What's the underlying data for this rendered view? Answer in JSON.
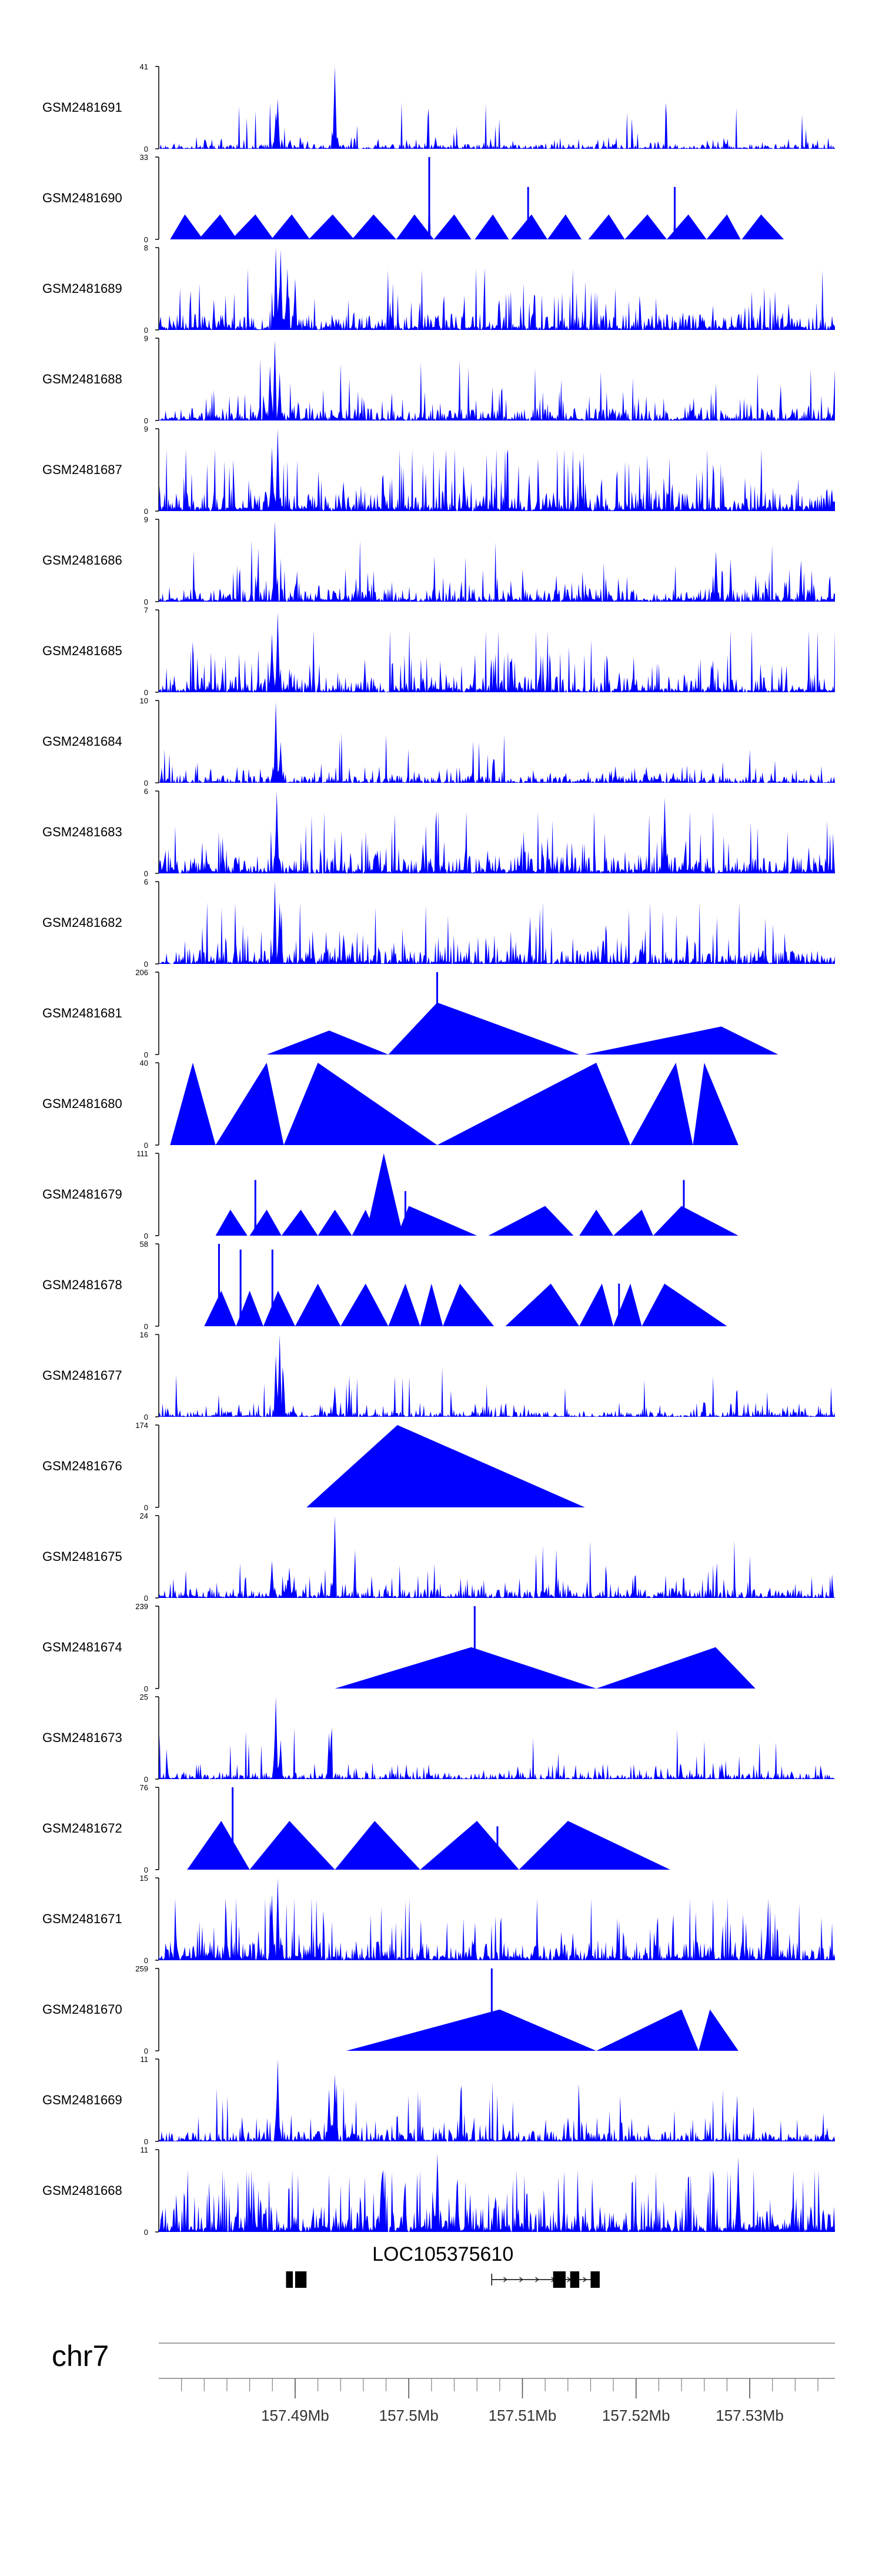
{
  "colors": {
    "track_fill": "#0000ff",
    "axis": "#000000",
    "ideogram_line": "#808080",
    "gene": "#000000"
  },
  "chart_data": {
    "type": "area",
    "title": "",
    "chromosome": "chr7",
    "xlim": [
      157.478,
      157.5375
    ],
    "x_ticks": [
      157.49,
      157.5,
      157.51,
      157.52,
      157.53
    ],
    "x_tick_labels": [
      "157.49Mb",
      "157.5Mb",
      "157.51Mb",
      "157.52Mb",
      "157.53Mb"
    ],
    "gene": {
      "name": "LOC105375610",
      "exons_upstream": [
        [
          157.4892,
          157.4898
        ],
        [
          157.49,
          157.491
        ]
      ],
      "intron_downstream": [
        157.5073,
        157.5168
      ],
      "exons_downstream": [
        [
          157.5127,
          157.5138
        ],
        [
          157.5142,
          157.515
        ],
        [
          157.516,
          157.5168
        ]
      ]
    },
    "series": [
      {
        "name": "GSM2481691",
        "ymax": 41,
        "tick_top": "41",
        "tick_bottom": "0",
        "style": "noise",
        "base": 2.5,
        "spikes": [
          [
            157.4885,
            25
          ],
          [
            157.4883,
            18
          ],
          [
            157.4935,
            41
          ]
        ],
        "seed": 11
      },
      {
        "name": "GSM2481690",
        "ymax": 33,
        "tick_top": "33",
        "tick_bottom": "0",
        "style": "triangles",
        "tri": [
          [
            157.479,
            157.4803,
            157.4819,
            10
          ],
          [
            157.4815,
            157.4834,
            157.4849,
            10
          ],
          [
            157.4844,
            157.4865,
            157.4881,
            10
          ],
          [
            157.4879,
            157.4897,
            157.4913,
            10
          ],
          [
            157.4912,
            157.4933,
            157.4952,
            10
          ],
          [
            157.495,
            157.4969,
            157.4989,
            10
          ],
          [
            157.4989,
            157.5005,
            157.5022,
            10
          ],
          [
            157.5022,
            157.504,
            157.5055,
            10
          ],
          [
            157.5058,
            157.5074,
            157.5088,
            10
          ],
          [
            157.509,
            157.5108,
            157.5122,
            10
          ],
          [
            157.5122,
            157.5138,
            157.5152,
            10
          ],
          [
            157.5158,
            157.5176,
            157.519,
            10
          ],
          [
            157.519,
            157.521,
            157.5227,
            10
          ],
          [
            157.5227,
            157.5246,
            157.5262,
            10
          ],
          [
            157.5262,
            157.528,
            157.5292,
            10
          ],
          [
            157.5293,
            157.531,
            157.533,
            10
          ]
        ],
        "spikes": [
          [
            157.5018,
            33
          ],
          [
            157.5105,
            21
          ],
          [
            157.5234,
            21
          ]
        ]
      },
      {
        "name": "GSM2481689",
        "ymax": 8,
        "tick_top": "8",
        "tick_bottom": "0",
        "style": "noise",
        "base": 1.6,
        "spikes": [
          [
            157.4883,
            8
          ],
          [
            157.4887,
            7.8
          ],
          [
            157.4893,
            6
          ],
          [
            157.49,
            5
          ]
        ],
        "seed": 23
      },
      {
        "name": "GSM2481688",
        "ymax": 9,
        "tick_top": "9",
        "tick_bottom": "0",
        "style": "noise",
        "base": 1.4,
        "spikes": [
          [
            157.4882,
            8.8
          ],
          [
            157.4878,
            6
          ],
          [
            157.4886,
            5
          ],
          [
            157.5375,
            5.5
          ]
        ],
        "seed": 37
      },
      {
        "name": "GSM2481687",
        "ymax": 9,
        "tick_top": "9",
        "tick_bottom": "0",
        "style": "noise",
        "base": 2.2,
        "spikes": [
          [
            157.4885,
            9
          ],
          [
            157.488,
            7
          ]
        ],
        "seed": 41
      },
      {
        "name": "GSM2481686",
        "ymax": 9,
        "tick_top": "9",
        "tick_bottom": "0",
        "style": "noise",
        "base": 1.5,
        "spikes": [
          [
            157.4882,
            8.8
          ],
          [
            157.527,
            5.5
          ]
        ],
        "seed": 53
      },
      {
        "name": "GSM2481685",
        "ymax": 7,
        "tick_top": "7",
        "tick_bottom": "0",
        "style": "noise",
        "base": 1.4,
        "spikes": [
          [
            157.4885,
            6.8
          ],
          [
            157.488,
            5
          ]
        ],
        "seed": 67
      },
      {
        "name": "GSM2481684",
        "ymax": 10,
        "tick_top": "10",
        "tick_bottom": "0",
        "style": "noise",
        "base": 0.9,
        "spikes": [
          [
            157.4883,
            9.8
          ],
          [
            157.4887,
            5
          ]
        ],
        "seed": 71
      },
      {
        "name": "GSM2481683",
        "ymax": 6,
        "tick_top": "6",
        "tick_bottom": "0",
        "style": "noise",
        "base": 1.3,
        "spikes": [
          [
            157.4884,
            6
          ],
          [
            157.5225,
            5.5
          ]
        ],
        "seed": 83
      },
      {
        "name": "GSM2481682",
        "ymax": 6,
        "tick_top": "6",
        "tick_bottom": "0",
        "style": "noise",
        "base": 1.0,
        "spikes": [
          [
            157.4882,
            6
          ],
          [
            157.4886,
            4.5
          ]
        ],
        "seed": 97
      },
      {
        "name": "GSM2481681",
        "ymax": 206,
        "tick_top": "206",
        "tick_bottom": "0",
        "style": "triangles",
        "tri": [
          [
            157.4875,
            157.493,
            157.4982,
            60
          ],
          [
            157.4982,
            157.5025,
            157.515,
            130
          ],
          [
            157.5155,
            157.5275,
            157.5325,
            70
          ]
        ],
        "spikes": [
          [
            157.5025,
            206
          ]
        ]
      },
      {
        "name": "GSM2481680",
        "ymax": 40,
        "tick_top": "40",
        "tick_bottom": "0",
        "style": "triangles",
        "tri": [
          [
            157.479,
            157.481,
            157.483,
            40
          ],
          [
            157.483,
            157.4875,
            157.489,
            40
          ],
          [
            157.489,
            157.492,
            157.5025,
            40
          ],
          [
            157.5025,
            157.5165,
            157.5195,
            40
          ],
          [
            157.5195,
            157.5235,
            157.525,
            40
          ],
          [
            157.525,
            157.526,
            157.529,
            40
          ]
        ]
      },
      {
        "name": "GSM2481679",
        "ymax": 111,
        "tick_top": "111",
        "tick_bottom": "0",
        "style": "triangles",
        "tri": [
          [
            157.483,
            157.4843,
            157.4858,
            35
          ],
          [
            157.486,
            157.4875,
            157.4888,
            35
          ],
          [
            157.4888,
            157.4905,
            157.492,
            35
          ],
          [
            157.492,
            157.4935,
            157.495,
            35
          ],
          [
            157.495,
            157.4962,
            157.4972,
            35
          ],
          [
            157.4962,
            157.4978,
            157.4995,
            111
          ],
          [
            157.499,
            157.5,
            157.506,
            40
          ],
          [
            157.507,
            157.512,
            157.5145,
            40
          ],
          [
            157.515,
            157.5165,
            157.518,
            35
          ],
          [
            157.518,
            157.5205,
            157.5215,
            35
          ],
          [
            157.5215,
            157.524,
            157.529,
            40
          ]
        ],
        "spikes": [
          [
            157.4865,
            75
          ],
          [
            157.4997,
            60
          ],
          [
            157.5242,
            75
          ]
        ]
      },
      {
        "name": "GSM2481678",
        "ymax": 58,
        "tick_top": "58",
        "tick_bottom": "0",
        "style": "triangles",
        "tri": [
          [
            157.482,
            157.4835,
            157.4848,
            25
          ],
          [
            157.4848,
            157.486,
            157.4872,
            25
          ],
          [
            157.4872,
            157.4885,
            157.49,
            25
          ],
          [
            157.49,
            157.492,
            157.494,
            30
          ],
          [
            157.494,
            157.4962,
            157.4982,
            30
          ],
          [
            157.4982,
            157.4997,
            157.501,
            30
          ],
          [
            157.501,
            157.502,
            157.503,
            30
          ],
          [
            157.503,
            157.5045,
            157.5075,
            30
          ],
          [
            157.5085,
            157.5125,
            157.515,
            30
          ],
          [
            157.515,
            157.517,
            157.518,
            30
          ],
          [
            157.518,
            157.5195,
            157.5205,
            30
          ],
          [
            157.5205,
            157.5225,
            157.528,
            30
          ]
        ],
        "spikes": [
          [
            157.4833,
            58
          ],
          [
            157.4852,
            54
          ],
          [
            157.488,
            54
          ],
          [
            157.5185,
            30
          ]
        ]
      },
      {
        "name": "GSM2481677",
        "ymax": 16,
        "tick_top": "16",
        "tick_bottom": "0",
        "style": "noise",
        "base": 1.2,
        "spikes": [
          [
            157.4886,
            16
          ],
          [
            157.4883,
            12
          ],
          [
            157.4935,
            6
          ],
          [
            157.489,
            8
          ]
        ],
        "seed": 109
      },
      {
        "name": "GSM2481676",
        "ymax": 174,
        "tick_top": "174",
        "tick_bottom": "0",
        "style": "triangles",
        "tri": [
          [
            157.491,
            157.499,
            157.5155,
            174
          ]
        ]
      },
      {
        "name": "GSM2481675",
        "ymax": 24,
        "tick_top": "24",
        "tick_bottom": "0",
        "style": "noise",
        "base": 2.8,
        "spikes": [
          [
            157.4935,
            24
          ],
          [
            157.488,
            11
          ],
          [
            157.4895,
            9
          ]
        ],
        "seed": 127
      },
      {
        "name": "GSM2481674",
        "ymax": 239,
        "tick_top": "239",
        "tick_bottom": "0",
        "style": "triangles",
        "tri": [
          [
            157.4935,
            157.5055,
            157.5165,
            120
          ],
          [
            157.5165,
            157.527,
            157.5305,
            120
          ]
        ],
        "spikes": [
          [
            157.5058,
            239
          ]
        ]
      },
      {
        "name": "GSM2481673",
        "ymax": 25,
        "tick_top": "25",
        "tick_bottom": "0",
        "style": "noise",
        "base": 2.0,
        "spikes": [
          [
            157.4883,
            25
          ],
          [
            157.493,
            14
          ],
          [
            157.4887,
            12
          ]
        ],
        "seed": 139
      },
      {
        "name": "GSM2481672",
        "ymax": 76,
        "tick_top": "76",
        "tick_bottom": "0",
        "style": "triangles",
        "tri": [
          [
            157.4805,
            157.4835,
            157.486,
            45
          ],
          [
            157.486,
            157.4895,
            157.4935,
            45
          ],
          [
            157.4935,
            157.497,
            157.501,
            45
          ],
          [
            157.501,
            157.506,
            157.5097,
            45
          ],
          [
            157.5097,
            157.514,
            157.523,
            45
          ]
        ],
        "spikes": [
          [
            157.4845,
            76
          ],
          [
            157.5078,
            40
          ]
        ]
      },
      {
        "name": "GSM2481671",
        "ymax": 15,
        "tick_top": "15",
        "tick_bottom": "0",
        "style": "noise",
        "base": 3.5,
        "spikes": [
          [
            157.4885,
            15
          ],
          [
            157.488,
            12
          ]
        ],
        "seed": 151
      },
      {
        "name": "GSM2481670",
        "ymax": 259,
        "tick_top": "259",
        "tick_bottom": "0",
        "style": "triangles",
        "tri": [
          [
            157.4945,
            157.508,
            157.5165,
            130
          ],
          [
            157.5165,
            157.524,
            157.5255,
            130
          ],
          [
            157.5255,
            157.5265,
            157.529,
            130
          ]
        ],
        "spikes": [
          [
            157.5073,
            259
          ]
        ]
      },
      {
        "name": "GSM2481669",
        "ymax": 11,
        "tick_top": "11",
        "tick_bottom": "0",
        "style": "noise",
        "base": 1.4,
        "spikes": [
          [
            157.4885,
            11
          ],
          [
            157.4935,
            9
          ],
          [
            157.493,
            7
          ]
        ],
        "seed": 163
      },
      {
        "name": "GSM2481668",
        "ymax": 11,
        "tick_top": "11",
        "tick_bottom": "0",
        "style": "noise",
        "base": 3.5,
        "spikes": [
          [
            157.5025,
            10.5
          ],
          [
            157.529,
            10
          ]
        ],
        "seed": 179
      }
    ]
  }
}
